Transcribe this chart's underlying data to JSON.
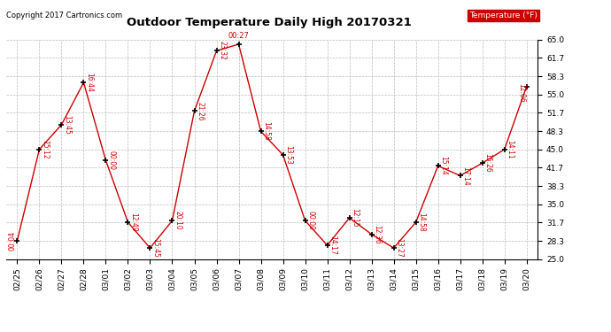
{
  "title": "Outdoor Temperature Daily High 20170321",
  "copyright": "Copyright 2017 Cartronics.com",
  "legend_label": "Temperature (°F)",
  "dates": [
    "02/25",
    "02/26",
    "02/27",
    "02/28",
    "03/01",
    "03/02",
    "03/03",
    "03/04",
    "03/05",
    "03/06",
    "03/07",
    "03/08",
    "03/09",
    "03/10",
    "03/11",
    "03/12",
    "03/13",
    "03/14",
    "03/15",
    "03/16",
    "03/17",
    "03/18",
    "03/19",
    "03/20"
  ],
  "temps": [
    28.3,
    45.0,
    49.5,
    57.2,
    43.0,
    31.7,
    27.0,
    32.0,
    52.0,
    63.0,
    64.2,
    48.3,
    44.0,
    32.0,
    27.5,
    32.5,
    29.5,
    27.0,
    31.7,
    42.0,
    40.2,
    42.5,
    45.0,
    56.5
  ],
  "time_labels": [
    "00:04",
    "15:12",
    "13:45",
    "16:44",
    "00:00",
    "12:49",
    "15:45",
    "20:10",
    "21:26",
    "23:32",
    "00:27",
    "14:58",
    "13:53",
    "00:00",
    "14:17",
    "12:15",
    "12:36",
    "13:27",
    "14:58",
    "15:14",
    "17:14",
    "15:26",
    "14:11",
    "12:06"
  ],
  "yticks": [
    25.0,
    28.3,
    31.7,
    35.0,
    38.3,
    41.7,
    45.0,
    48.3,
    51.7,
    55.0,
    58.3,
    61.7,
    65.0
  ],
  "ymin": 25.0,
  "ymax": 65.0,
  "line_color": "#cc0000",
  "marker_color": "#000000",
  "label_color": "#cc0000",
  "bg_color": "#ffffff",
  "grid_color": "#bbbbbb",
  "legend_bg": "#cc0000",
  "legend_text_color": "#ffffff",
  "title_color": "#000000",
  "copyright_color": "#000000",
  "figw": 6.9,
  "figh": 3.75,
  "dpi": 100
}
